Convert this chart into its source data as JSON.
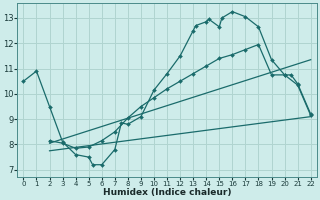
{
  "xlabel": "Humidex (Indice chaleur)",
  "xlim": [
    -0.5,
    22.5
  ],
  "ylim": [
    6.7,
    13.6
  ],
  "yticks": [
    7,
    8,
    9,
    10,
    11,
    12,
    13
  ],
  "xticks": [
    0,
    1,
    2,
    3,
    4,
    5,
    6,
    7,
    8,
    9,
    10,
    11,
    12,
    13,
    14,
    15,
    16,
    17,
    18,
    19,
    20,
    21,
    22
  ],
  "bg_color": "#ceecea",
  "grid_color": "#b0d4d0",
  "line_color": "#1a6b6b",
  "curve1_x": [
    0,
    1,
    2,
    3,
    4,
    5,
    5.3,
    6,
    7,
    7.5,
    8,
    9,
    10,
    11,
    12,
    13,
    13.2,
    14,
    14.2,
    15,
    15.2,
    16,
    17,
    18,
    19,
    20,
    20.5,
    21,
    22
  ],
  "curve1_y": [
    10.5,
    10.9,
    9.5,
    8.1,
    7.6,
    7.5,
    7.2,
    7.2,
    7.8,
    8.85,
    8.8,
    9.1,
    10.15,
    10.8,
    11.5,
    12.5,
    12.7,
    12.85,
    12.95,
    12.65,
    13.0,
    13.25,
    13.05,
    12.65,
    11.35,
    10.75,
    10.75,
    10.4,
    9.2
  ],
  "curve2_x": [
    2,
    3,
    4,
    5,
    6,
    7,
    8,
    9,
    10,
    11,
    12,
    13,
    14,
    15,
    16,
    17,
    18,
    19,
    20,
    21,
    22
  ],
  "curve2_y": [
    8.15,
    8.05,
    7.85,
    7.9,
    8.15,
    8.5,
    9.05,
    9.5,
    9.85,
    10.2,
    10.5,
    10.8,
    11.1,
    11.4,
    11.55,
    11.75,
    11.95,
    10.75,
    10.75,
    10.35,
    9.15
  ],
  "line1_x": [
    2,
    22
  ],
  "line1_y": [
    8.05,
    11.35
  ],
  "line2_x": [
    2,
    22
  ],
  "line2_y": [
    7.75,
    9.1
  ]
}
